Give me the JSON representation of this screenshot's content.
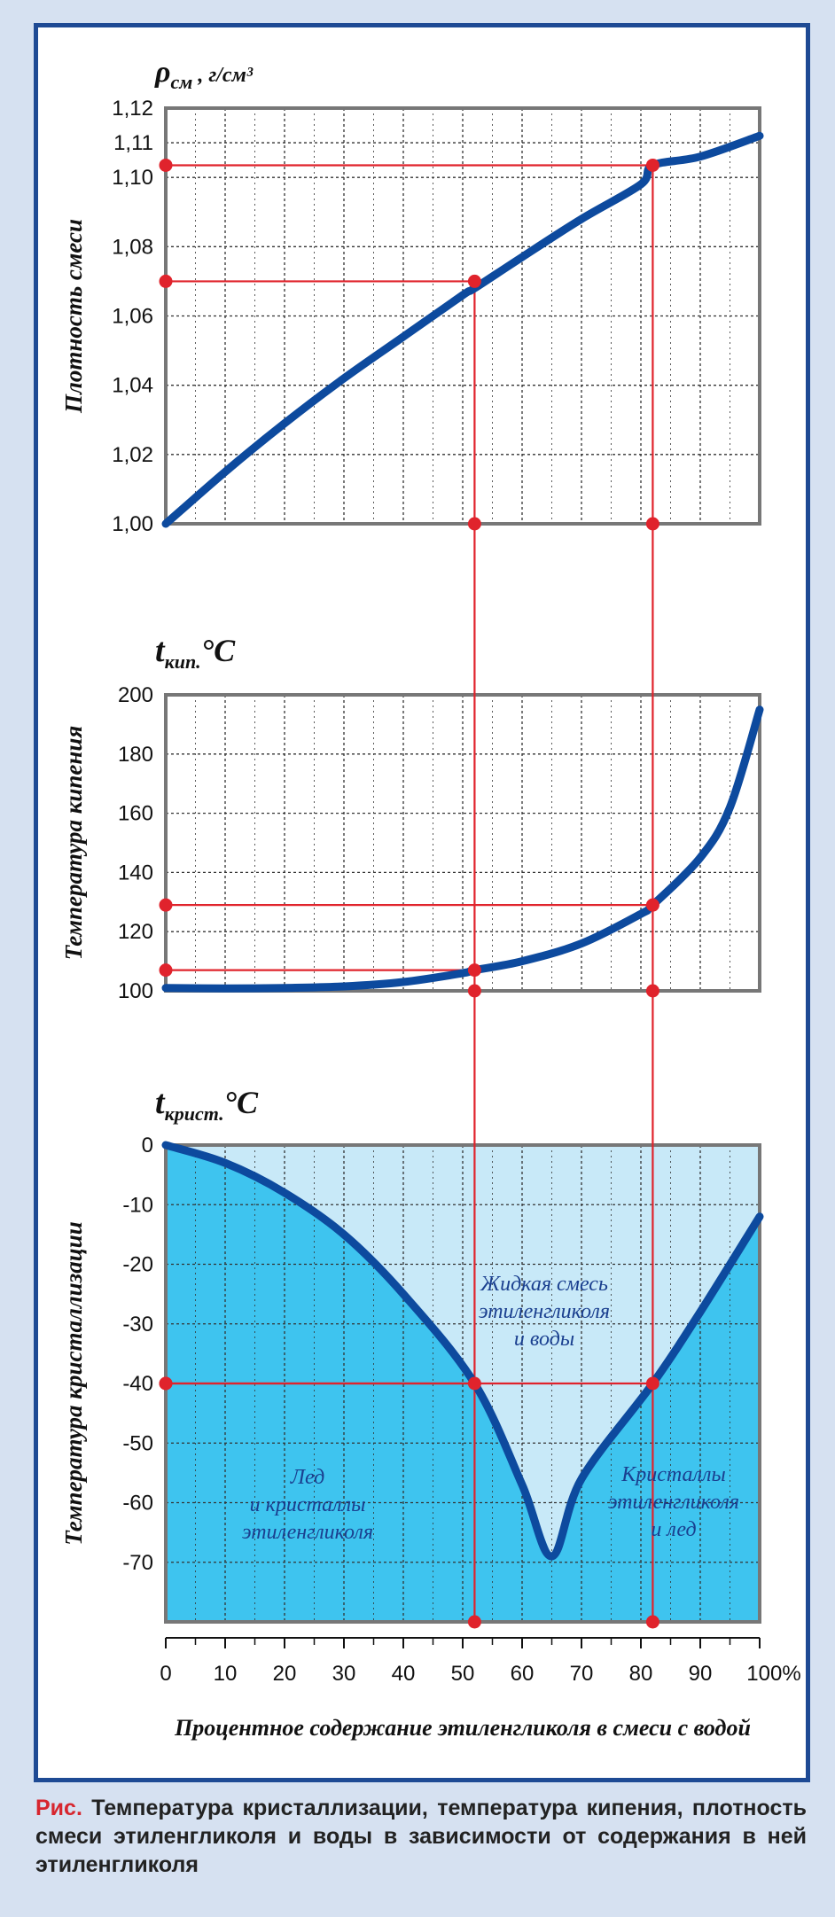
{
  "caption": {
    "lead": "Рис.",
    "text": "Температура кристаллизации, температура кипения, плотность смеси этиленгликоля и воды в зависимости от содержания в ней этиленгликоля"
  },
  "colors": {
    "frame": "#1e4a94",
    "curve": "#0d4a9e",
    "guide": "#e0232c",
    "grid": "#333333",
    "fill_dark": "#3ec4ef",
    "fill_light": "#c8e9f8",
    "page_bg": "#d6e1f1"
  },
  "chart_data": [
    {
      "type": "line",
      "id": "density",
      "unit_symbol": "ρ",
      "unit_sub": "см",
      "unit_rest": ", г/см³",
      "ylabel": "Плотность смеси",
      "ylim": [
        1.0,
        1.12
      ],
      "yticks": [
        "1,00",
        "1,02",
        "1,04",
        "1,06",
        "1,08",
        "1,10",
        "1,11",
        "1,12"
      ],
      "ytick_values": [
        1.0,
        1.02,
        1.04,
        1.06,
        1.08,
        1.1,
        1.11,
        1.12
      ],
      "x": [
        0,
        10,
        20,
        30,
        40,
        50,
        52,
        60,
        70,
        80,
        82,
        90,
        100
      ],
      "y": [
        1.0,
        1.015,
        1.029,
        1.042,
        1.054,
        1.066,
        1.068,
        1.077,
        1.088,
        1.098,
        1.1035,
        1.106,
        1.112
      ],
      "guides": [
        {
          "x": 52,
          "y": 1.07
        },
        {
          "x": 82,
          "y": 1.1035
        }
      ]
    },
    {
      "type": "line",
      "id": "boiling",
      "unit_symbol": "t",
      "unit_sub": "кип.",
      "unit_rest": "°C",
      "ylabel": "Температура кипения",
      "ylim": [
        100,
        200
      ],
      "yticks": [
        "100",
        "120",
        "140",
        "160",
        "180",
        "200"
      ],
      "ytick_values": [
        100,
        120,
        140,
        160,
        180,
        200
      ],
      "x": [
        0,
        10,
        20,
        30,
        40,
        50,
        52,
        60,
        70,
        80,
        82,
        90,
        95,
        100
      ],
      "y": [
        101,
        100.8,
        101,
        101.5,
        103,
        106,
        107,
        110,
        116,
        126,
        129,
        145,
        162,
        195
      ],
      "guides": [
        {
          "x": 52,
          "y": 107
        },
        {
          "x": 82,
          "y": 129
        }
      ]
    },
    {
      "type": "area",
      "id": "crystallization",
      "unit_symbol": "t",
      "unit_sub": "крист.",
      "unit_rest": "°C",
      "ylabel": "Температура кристаллизации",
      "ylim": [
        -80,
        0
      ],
      "yticks": [
        "0",
        "-10",
        "-20",
        "-30",
        "-40",
        "-50",
        "-60",
        "-70"
      ],
      "ytick_values": [
        0,
        -10,
        -20,
        -30,
        -40,
        -50,
        -60,
        -70
      ],
      "x": [
        0,
        10,
        20,
        30,
        40,
        52,
        60,
        65,
        70,
        82,
        90,
        100
      ],
      "y": [
        0,
        -3,
        -8,
        -15,
        -25,
        -40,
        -57,
        -69,
        -56,
        -40,
        -28,
        -12
      ],
      "guides": [
        {
          "x": 52,
          "y": -40
        },
        {
          "x": 82,
          "y": -40
        }
      ],
      "regions": [
        {
          "lines": [
            "Жидкая смесь",
            "этиленгликоля",
            "и воды"
          ]
        },
        {
          "lines": [
            "Лед",
            "и кристаллы",
            "этиленгликоля"
          ]
        },
        {
          "lines": [
            "Кристаллы",
            "этиленгликоля",
            "и лед"
          ]
        }
      ]
    }
  ],
  "x_axis": {
    "ticks": [
      "0",
      "10",
      "20",
      "30",
      "40",
      "50",
      "60",
      "70",
      "80",
      "90",
      "100%"
    ],
    "values": [
      0,
      10,
      20,
      30,
      40,
      50,
      60,
      70,
      80,
      90,
      100
    ],
    "title": "Процентное содержание этиленгликоля в смеси с водой"
  }
}
